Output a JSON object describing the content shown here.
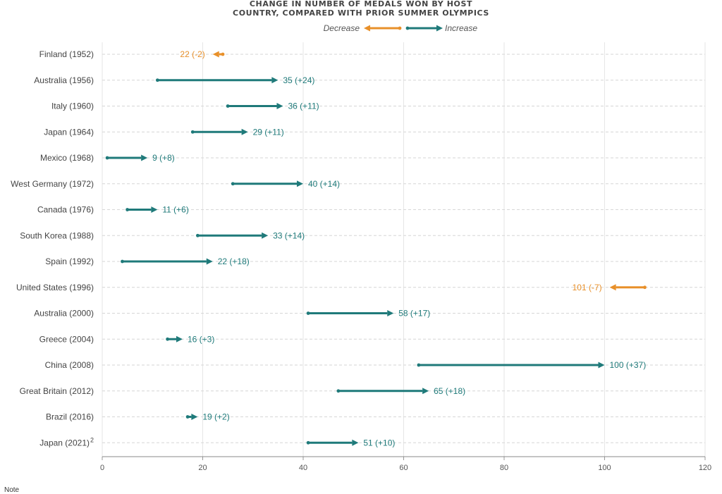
{
  "title_lines": [
    "CHANGE IN NUMBER OF MEDALS WON BY HOST",
    "COUNTRY, COMPARED WITH PRIOR SUMMER OLYMPICS"
  ],
  "note_label": "Note",
  "colors": {
    "increase": "#1f7a7a",
    "decrease": "#e8902a",
    "grid": "#d6d6d6",
    "axis_text": "#555555",
    "label_text": "#444444"
  },
  "chart_data": {
    "type": "dumbbell_arrow",
    "legend": {
      "decrease": "Decrease",
      "increase": "Increase",
      "placement": "top-center"
    },
    "xlim": [
      0,
      120
    ],
    "xticks": [
      0,
      20,
      40,
      60,
      80,
      100,
      120
    ],
    "grid": true,
    "rows": [
      {
        "label": "Finland (1952)",
        "from": 24,
        "to": 22,
        "text": "22 (-2)"
      },
      {
        "label": "Australia (1956)",
        "from": 11,
        "to": 35,
        "text": "35 (+24)"
      },
      {
        "label": "Italy (1960)",
        "from": 25,
        "to": 36,
        "text": "36 (+11)"
      },
      {
        "label": "Japan (1964)",
        "from": 18,
        "to": 29,
        "text": "29 (+11)"
      },
      {
        "label": "Mexico (1968)",
        "from": 1,
        "to": 9,
        "text": "9 (+8)"
      },
      {
        "label": "West Germany (1972)",
        "from": 26,
        "to": 40,
        "text": "40 (+14)"
      },
      {
        "label": "Canada (1976)",
        "from": 5,
        "to": 11,
        "text": "11 (+6)"
      },
      {
        "label": "South Korea (1988)",
        "from": 19,
        "to": 33,
        "text": "33 (+14)"
      },
      {
        "label": "Spain (1992)",
        "from": 4,
        "to": 22,
        "text": "22 (+18)"
      },
      {
        "label": "United States (1996)",
        "from": 108,
        "to": 101,
        "text": "101 (-7)"
      },
      {
        "label": "Australia (2000)",
        "from": 41,
        "to": 58,
        "text": "58 (+17)"
      },
      {
        "label": "Greece (2004)",
        "from": 13,
        "to": 16,
        "text": "16 (+3)"
      },
      {
        "label": "China (2008)",
        "from": 63,
        "to": 100,
        "text": "100 (+37)"
      },
      {
        "label": "Great Britain (2012)",
        "from": 47,
        "to": 65,
        "text": "65 (+18)"
      },
      {
        "label": "Brazil (2016)",
        "from": 17,
        "to": 19,
        "text": "19 (+2)"
      },
      {
        "label": "Japan (2021)",
        "sup": "2",
        "from": 41,
        "to": 51,
        "text": "51 (+10)"
      }
    ]
  }
}
